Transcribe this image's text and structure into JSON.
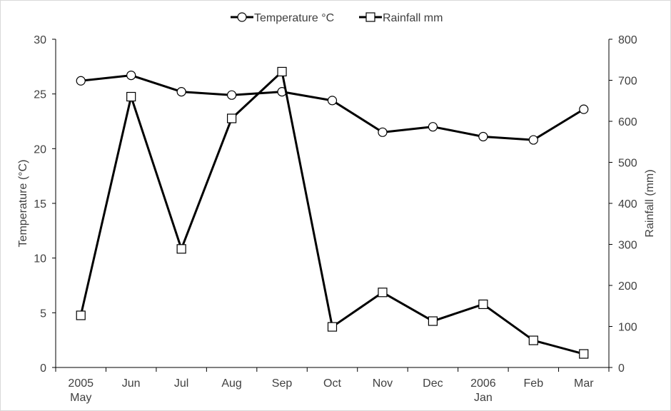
{
  "chart_data": {
    "type": "line",
    "title": "",
    "xlabel": "",
    "categories": [
      "2005\nMay",
      "Jun",
      "Jul",
      "Aug",
      "Sep",
      "Oct",
      "Nov",
      "Dec",
      "2006\nJan",
      "Feb",
      "Mar"
    ],
    "category_lines": [
      [
        "2005",
        "May"
      ],
      [
        "Jun"
      ],
      [
        "Jul"
      ],
      [
        "Aug"
      ],
      [
        "Sep"
      ],
      [
        "Oct"
      ],
      [
        "Nov"
      ],
      [
        "Dec"
      ],
      [
        "2006",
        "Jan"
      ],
      [
        "Feb"
      ],
      [
        "Mar"
      ]
    ],
    "y_left": {
      "label": "Temperature (°C)",
      "lim": [
        0,
        30
      ],
      "ticks": [
        0,
        5,
        10,
        15,
        20,
        25,
        30
      ]
    },
    "y_right": {
      "label": "Rainfall (mm)",
      "lim": [
        0,
        800
      ],
      "ticks": [
        0,
        100,
        200,
        300,
        400,
        500,
        600,
        700,
        800
      ]
    },
    "series": [
      {
        "name": "Temperature °C",
        "axis": "left",
        "marker": "circle",
        "color": "#000000",
        "values": [
          26.2,
          26.7,
          25.2,
          24.9,
          25.2,
          24.4,
          21.5,
          22.0,
          21.1,
          20.8,
          23.6
        ]
      },
      {
        "name": "Rainfall mm",
        "axis": "right",
        "marker": "square",
        "color": "#000000",
        "values": [
          127,
          660,
          289,
          607,
          721,
          99,
          183,
          113,
          154,
          66,
          33
        ]
      }
    ],
    "legend": {
      "position": "top-center",
      "items": [
        "Temperature °C",
        "Rainfall mm"
      ]
    },
    "grid": false
  }
}
